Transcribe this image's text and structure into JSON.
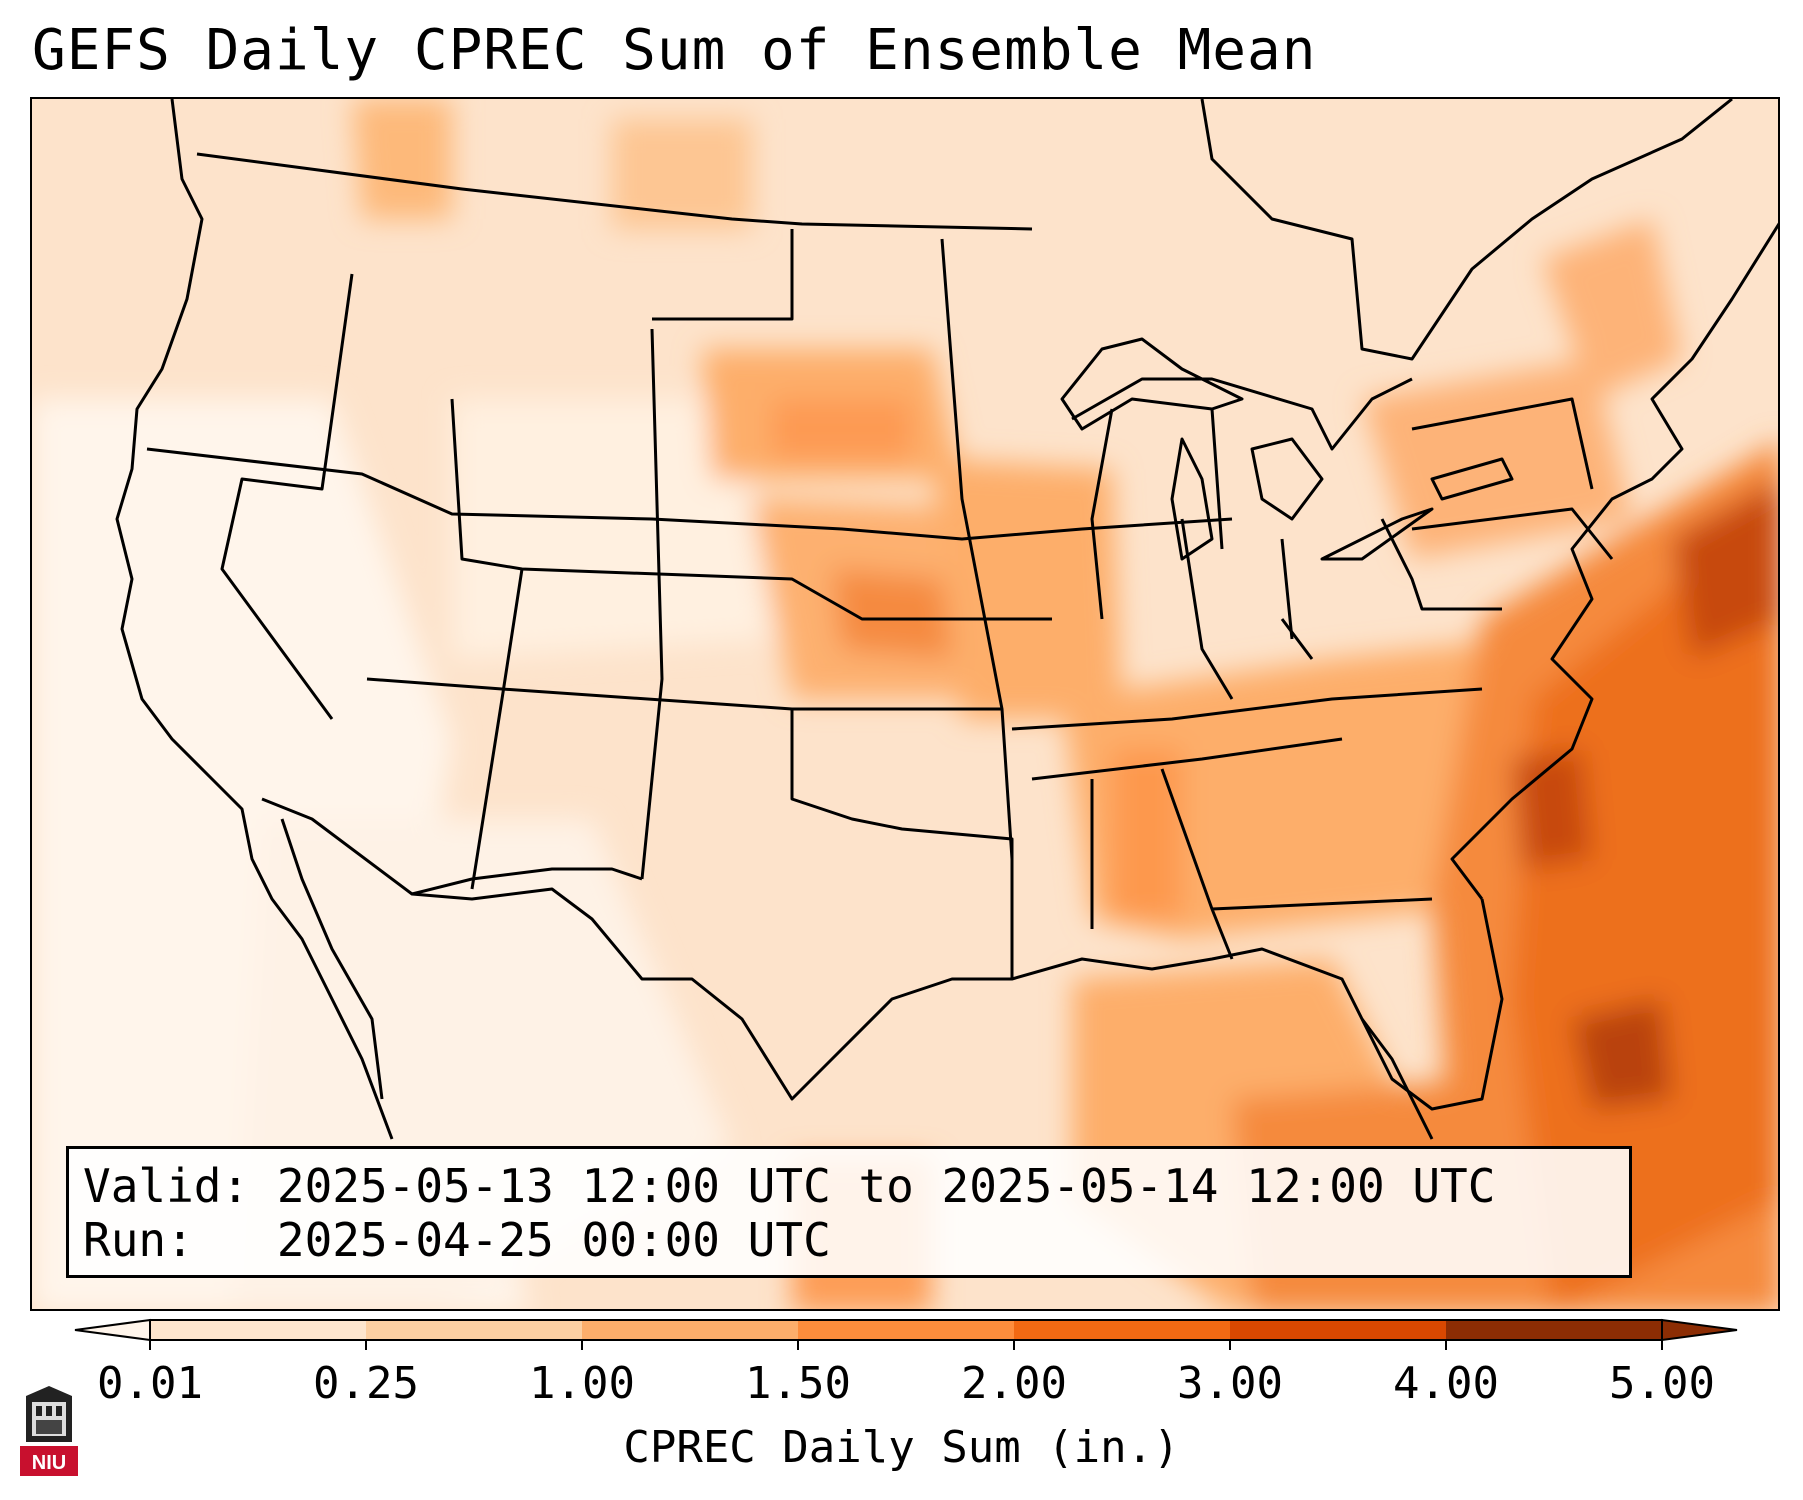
{
  "title": "GEFS Daily CPREC Sum of Ensemble Mean",
  "info": {
    "valid_label": "Valid:",
    "valid_value": "2025-05-13 12:00 UTC to 2025-05-14 12:00 UTC",
    "run_label": "Run:",
    "run_value": "2025-04-25 00:00 UTC"
  },
  "colorbar": {
    "label": "CPREC Daily Sum (in.)",
    "ticks": [
      "0.01",
      "0.25",
      "1.00",
      "1.50",
      "2.00",
      "3.00",
      "4.00",
      "5.00"
    ],
    "colors": [
      "#fff5eb",
      "#fee6ce",
      "#fdd0a2",
      "#fdae6b",
      "#fd8d3c",
      "#f16913",
      "#d94801",
      "#8c2d04"
    ],
    "extend": "both"
  },
  "logo": {
    "text": "NIU",
    "icon": "niu-logo-icon"
  }
}
